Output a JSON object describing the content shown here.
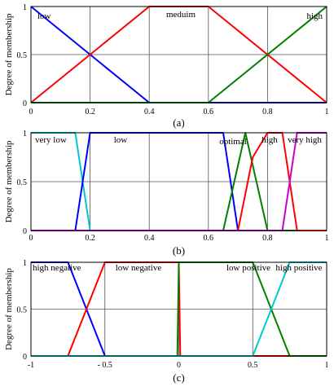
{
  "chart_data": [
    {
      "type": "line",
      "caption": "(a)",
      "ylabel": "Degree of membership",
      "xlim": [
        0,
        1
      ],
      "ylim": [
        0,
        1
      ],
      "x_ticks": [
        "0",
        "0.2",
        "0.4",
        "0.6",
        "0.8",
        "1"
      ],
      "y_ticks": [
        "0",
        "0.5",
        "1"
      ],
      "grid": true,
      "sets": [
        "low",
        "meduim",
        "high"
      ],
      "series": [
        {
          "color": "#0000ff",
          "x": [
            0,
            0.4,
            1
          ],
          "y": [
            1,
            0,
            0
          ]
        },
        {
          "color": "#ff0000",
          "x": [
            0,
            0.4,
            0.6,
            1
          ],
          "y": [
            0,
            1,
            1,
            0
          ]
        },
        {
          "color": "#008000",
          "x": [
            0,
            0.6,
            1
          ],
          "y": [
            0,
            0,
            1
          ]
        }
      ]
    },
    {
      "type": "line",
      "caption": "(b)",
      "ylabel": "Degree of membership",
      "xlim": [
        0,
        1
      ],
      "ylim": [
        0,
        1
      ],
      "x_ticks": [
        "0",
        "0.2",
        "0.4",
        "0.6",
        "0.8",
        "1"
      ],
      "y_ticks": [
        "0",
        "0.5",
        "1"
      ],
      "grid": true,
      "sets": [
        "very low",
        "low",
        "optimal",
        "high",
        "very high"
      ],
      "series": [
        {
          "color": "#00c8c8",
          "x": [
            0,
            0.15,
            0.2,
            1
          ],
          "y": [
            1,
            1,
            0,
            0
          ]
        },
        {
          "color": "#0000ff",
          "x": [
            0,
            0.15,
            0.2,
            0.65,
            0.7,
            1
          ],
          "y": [
            0,
            0,
            1,
            1,
            0,
            0
          ]
        },
        {
          "color": "#008000",
          "x": [
            0,
            0.65,
            0.725,
            0.8,
            1
          ],
          "y": [
            0,
            0,
            1,
            0,
            0
          ]
        },
        {
          "color": "#ff0000",
          "x": [
            0,
            0.7,
            0.75,
            0.8,
            0.85,
            0.9,
            1
          ],
          "y": [
            0,
            0,
            0.75,
            1,
            1,
            0,
            0
          ]
        },
        {
          "color": "#cc00cc",
          "x": [
            0,
            0.85,
            0.9,
            1
          ],
          "y": [
            0,
            0,
            1,
            1
          ]
        }
      ]
    },
    {
      "type": "line",
      "caption": "(c)",
      "ylabel": "Degree of membership",
      "xlim": [
        -1,
        1
      ],
      "ylim": [
        0,
        1
      ],
      "x_ticks": [
        "-1",
        "- 0.5",
        "0",
        "0.5",
        "1"
      ],
      "y_ticks": [
        "0",
        "0.5",
        "1"
      ],
      "grid": true,
      "sets": [
        "high negative",
        "low negative",
        "low positive",
        "high positive"
      ],
      "series": [
        {
          "color": "#0000ff",
          "x": [
            -1,
            -0.75,
            -0.5,
            1
          ],
          "y": [
            1,
            1,
            0,
            0
          ]
        },
        {
          "color": "#ff0000",
          "x": [
            -1,
            -0.75,
            -0.5,
            0,
            0.01,
            1
          ],
          "y": [
            0,
            0,
            1,
            1,
            0,
            0
          ]
        },
        {
          "color": "#008000",
          "x": [
            -1,
            -0.01,
            0,
            0.5,
            0.75,
            1
          ],
          "y": [
            0,
            0,
            1,
            1,
            0,
            0
          ]
        },
        {
          "color": "#00c8c8",
          "x": [
            -1,
            0.5,
            0.75,
            1
          ],
          "y": [
            0,
            0,
            1,
            1
          ]
        }
      ]
    }
  ]
}
